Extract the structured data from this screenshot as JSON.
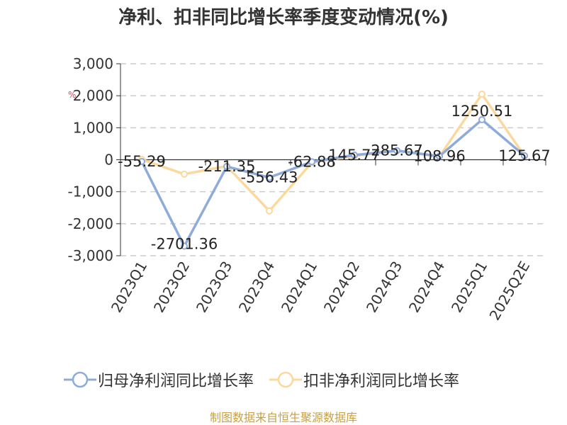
{
  "chart_data": {
    "type": "line",
    "title": "净利、扣非同比增长率季度变动情况(%)",
    "categories": [
      "2023Q1",
      "2023Q2",
      "2023Q3",
      "2023Q4",
      "2024Q1",
      "2024Q2",
      "2024Q3",
      "2024Q4",
      "2025Q1",
      "2025Q2E"
    ],
    "ylim": [
      -3000,
      3000
    ],
    "yticks": [
      "3,000",
      "2,000",
      "1,000",
      "0",
      "-1,000",
      "-2,000",
      "-3,000"
    ],
    "ytick_values": [
      3000,
      2000,
      1000,
      0,
      -1000,
      -2000,
      -3000
    ],
    "unit_mark": "%",
    "grid": true,
    "legend_position": "bottom",
    "series": [
      {
        "name": "归母净利润同比增长率",
        "color": "#8eabd9",
        "values": [
          -55.29,
          -2701.36,
          -211.35,
          -556.43,
          -62.88,
          145.77,
          285.67,
          108.96,
          1250.51,
          125.67
        ],
        "labels": [
          "-55.29",
          "-2701.36",
          "-211.35",
          "-556.43",
          "-62.88",
          "145.77",
          "285.67",
          "108.96",
          "1250.51",
          "125.67"
        ]
      },
      {
        "name": "扣非净利润同比增长率",
        "color": "#fbd99e",
        "values": [
          10,
          -450,
          -200,
          -1600,
          -90,
          120,
          280,
          100,
          2050,
          120
        ]
      }
    ]
  },
  "source": "制图数据来自恒生聚源数据库"
}
